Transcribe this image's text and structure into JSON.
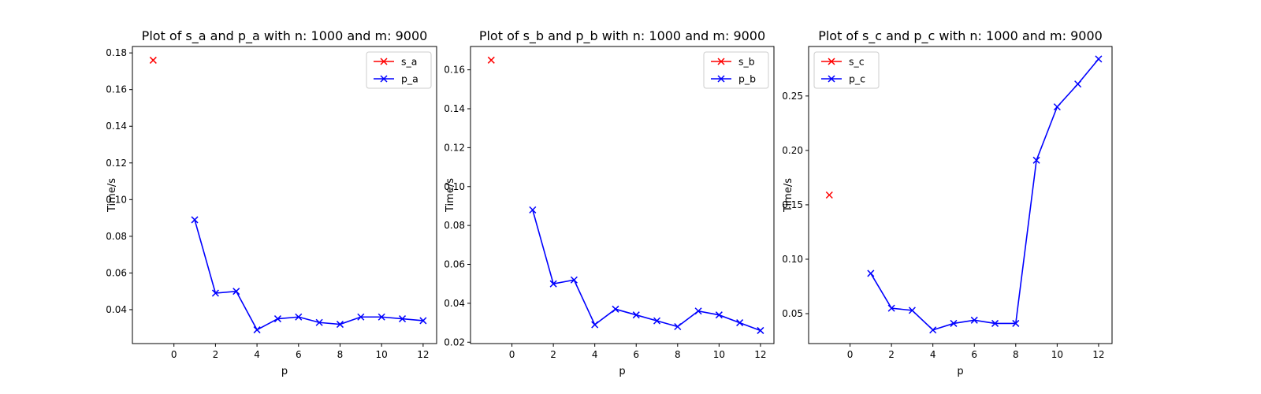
{
  "chart_data": [
    {
      "type": "line",
      "title": "Plot of s_a and p_a with n: 1000 and m: 9000",
      "xlabel": "p",
      "ylabel": "Time/s",
      "xlim": [
        -2.0,
        12.65
      ],
      "ylim": [
        0.0215,
        0.1835
      ],
      "xticks": [
        0,
        2,
        4,
        6,
        8,
        10,
        12
      ],
      "yticks": [
        0.04,
        0.06,
        0.08,
        0.1,
        0.12,
        0.14,
        0.16,
        0.18
      ],
      "ytick_labels": [
        "0.04",
        "0.06",
        "0.08",
        "0.10",
        "0.12",
        "0.14",
        "0.16",
        "0.18"
      ],
      "legend_position": "upper right",
      "grid": false,
      "series": [
        {
          "name": "s_a",
          "color": "#ff0000",
          "marker": "x",
          "line": false,
          "x": [
            -1
          ],
          "y": [
            0.176
          ]
        },
        {
          "name": "p_a",
          "color": "#0000ff",
          "marker": "x",
          "line": true,
          "x": [
            1,
            2,
            3,
            4,
            5,
            6,
            7,
            8,
            9,
            10,
            11,
            12
          ],
          "y": [
            0.089,
            0.049,
            0.05,
            0.029,
            0.035,
            0.036,
            0.033,
            0.032,
            0.036,
            0.036,
            0.035,
            0.034
          ]
        }
      ]
    },
    {
      "type": "line",
      "title": "Plot of s_b and p_b with n: 1000 and m: 9000",
      "xlabel": "p",
      "ylabel": "Time/s",
      "xlim": [
        -2.0,
        12.65
      ],
      "ylim": [
        0.0193,
        0.172
      ],
      "xticks": [
        0,
        2,
        4,
        6,
        8,
        10,
        12
      ],
      "yticks": [
        0.02,
        0.04,
        0.06,
        0.08,
        0.1,
        0.12,
        0.14,
        0.16
      ],
      "ytick_labels": [
        "0.02",
        "0.04",
        "0.06",
        "0.08",
        "0.10",
        "0.12",
        "0.14",
        "0.16"
      ],
      "legend_position": "upper right",
      "grid": false,
      "series": [
        {
          "name": "s_b",
          "color": "#ff0000",
          "marker": "x",
          "line": false,
          "x": [
            -1
          ],
          "y": [
            0.165
          ]
        },
        {
          "name": "p_b",
          "color": "#0000ff",
          "marker": "x",
          "line": true,
          "x": [
            1,
            2,
            3,
            4,
            5,
            6,
            7,
            8,
            9,
            10,
            11,
            12
          ],
          "y": [
            0.088,
            0.05,
            0.052,
            0.029,
            0.037,
            0.034,
            0.031,
            0.028,
            0.036,
            0.034,
            0.03,
            0.026
          ]
        }
      ]
    },
    {
      "type": "line",
      "title": "Plot of s_c and p_c with n: 1000 and m: 9000",
      "xlabel": "p",
      "ylabel": "Time/s",
      "xlim": [
        -2.0,
        12.65
      ],
      "ylim": [
        0.0225,
        0.2955
      ],
      "xticks": [
        0,
        2,
        4,
        6,
        8,
        10,
        12
      ],
      "yticks": [
        0.05,
        0.1,
        0.15,
        0.2,
        0.25
      ],
      "ytick_labels": [
        "0.05",
        "0.10",
        "0.15",
        "0.20",
        "0.25"
      ],
      "legend_position": "upper left",
      "grid": false,
      "series": [
        {
          "name": "s_c",
          "color": "#ff0000",
          "marker": "x",
          "line": false,
          "x": [
            -1
          ],
          "y": [
            0.159
          ]
        },
        {
          "name": "p_c",
          "color": "#0000ff",
          "marker": "x",
          "line": true,
          "x": [
            1,
            2,
            3,
            4,
            5,
            6,
            7,
            8,
            9,
            10,
            11,
            12
          ],
          "y": [
            0.087,
            0.055,
            0.053,
            0.035,
            0.041,
            0.044,
            0.041,
            0.041,
            0.191,
            0.24,
            0.261,
            0.284
          ]
        }
      ]
    }
  ]
}
